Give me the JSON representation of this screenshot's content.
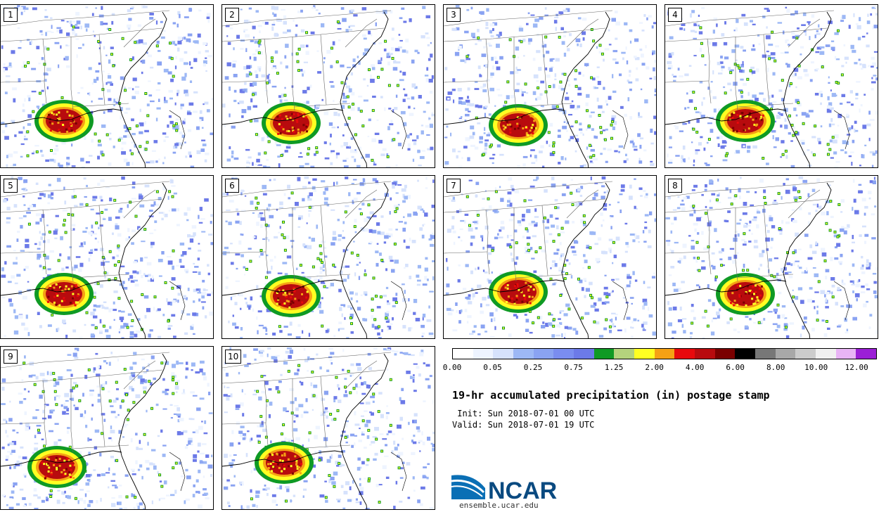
{
  "panels": [
    {
      "label": "1"
    },
    {
      "label": "2"
    },
    {
      "label": "3"
    },
    {
      "label": "4"
    },
    {
      "label": "5"
    },
    {
      "label": "6"
    },
    {
      "label": "7"
    },
    {
      "label": "8"
    },
    {
      "label": "9"
    },
    {
      "label": "10"
    }
  ],
  "colorbar": {
    "colors": [
      "#ffffff",
      "#eef4ff",
      "#d6e2fc",
      "#9db8f5",
      "#8aa3f2",
      "#7a8df0",
      "#6c7ae8",
      "#0f9a24",
      "#b4d37d",
      "#ffff22",
      "#f5a114",
      "#e8090c",
      "#b80b0e",
      "#7a0000",
      "#000000",
      "#777777",
      "#a8a8a8",
      "#cccccc",
      "#f0f0f0",
      "#e8b4f5",
      "#9b1fd6"
    ],
    "ticks": [
      "0.00",
      "0.05",
      "0.25",
      "0.75",
      "1.25",
      "2.00",
      "4.00",
      "6.00",
      "8.00",
      "10.00",
      "12.00"
    ]
  },
  "title": "19-hr accumulated precipitation (in) postage stamp",
  "init": " Init: Sun 2018-07-01 00 UTC",
  "valid": "Valid: Sun 2018-07-01 19 UTC",
  "logo": {
    "text": "NCAR",
    "url": "ensemble.ucar.edu",
    "color": "#0a4a80"
  }
}
